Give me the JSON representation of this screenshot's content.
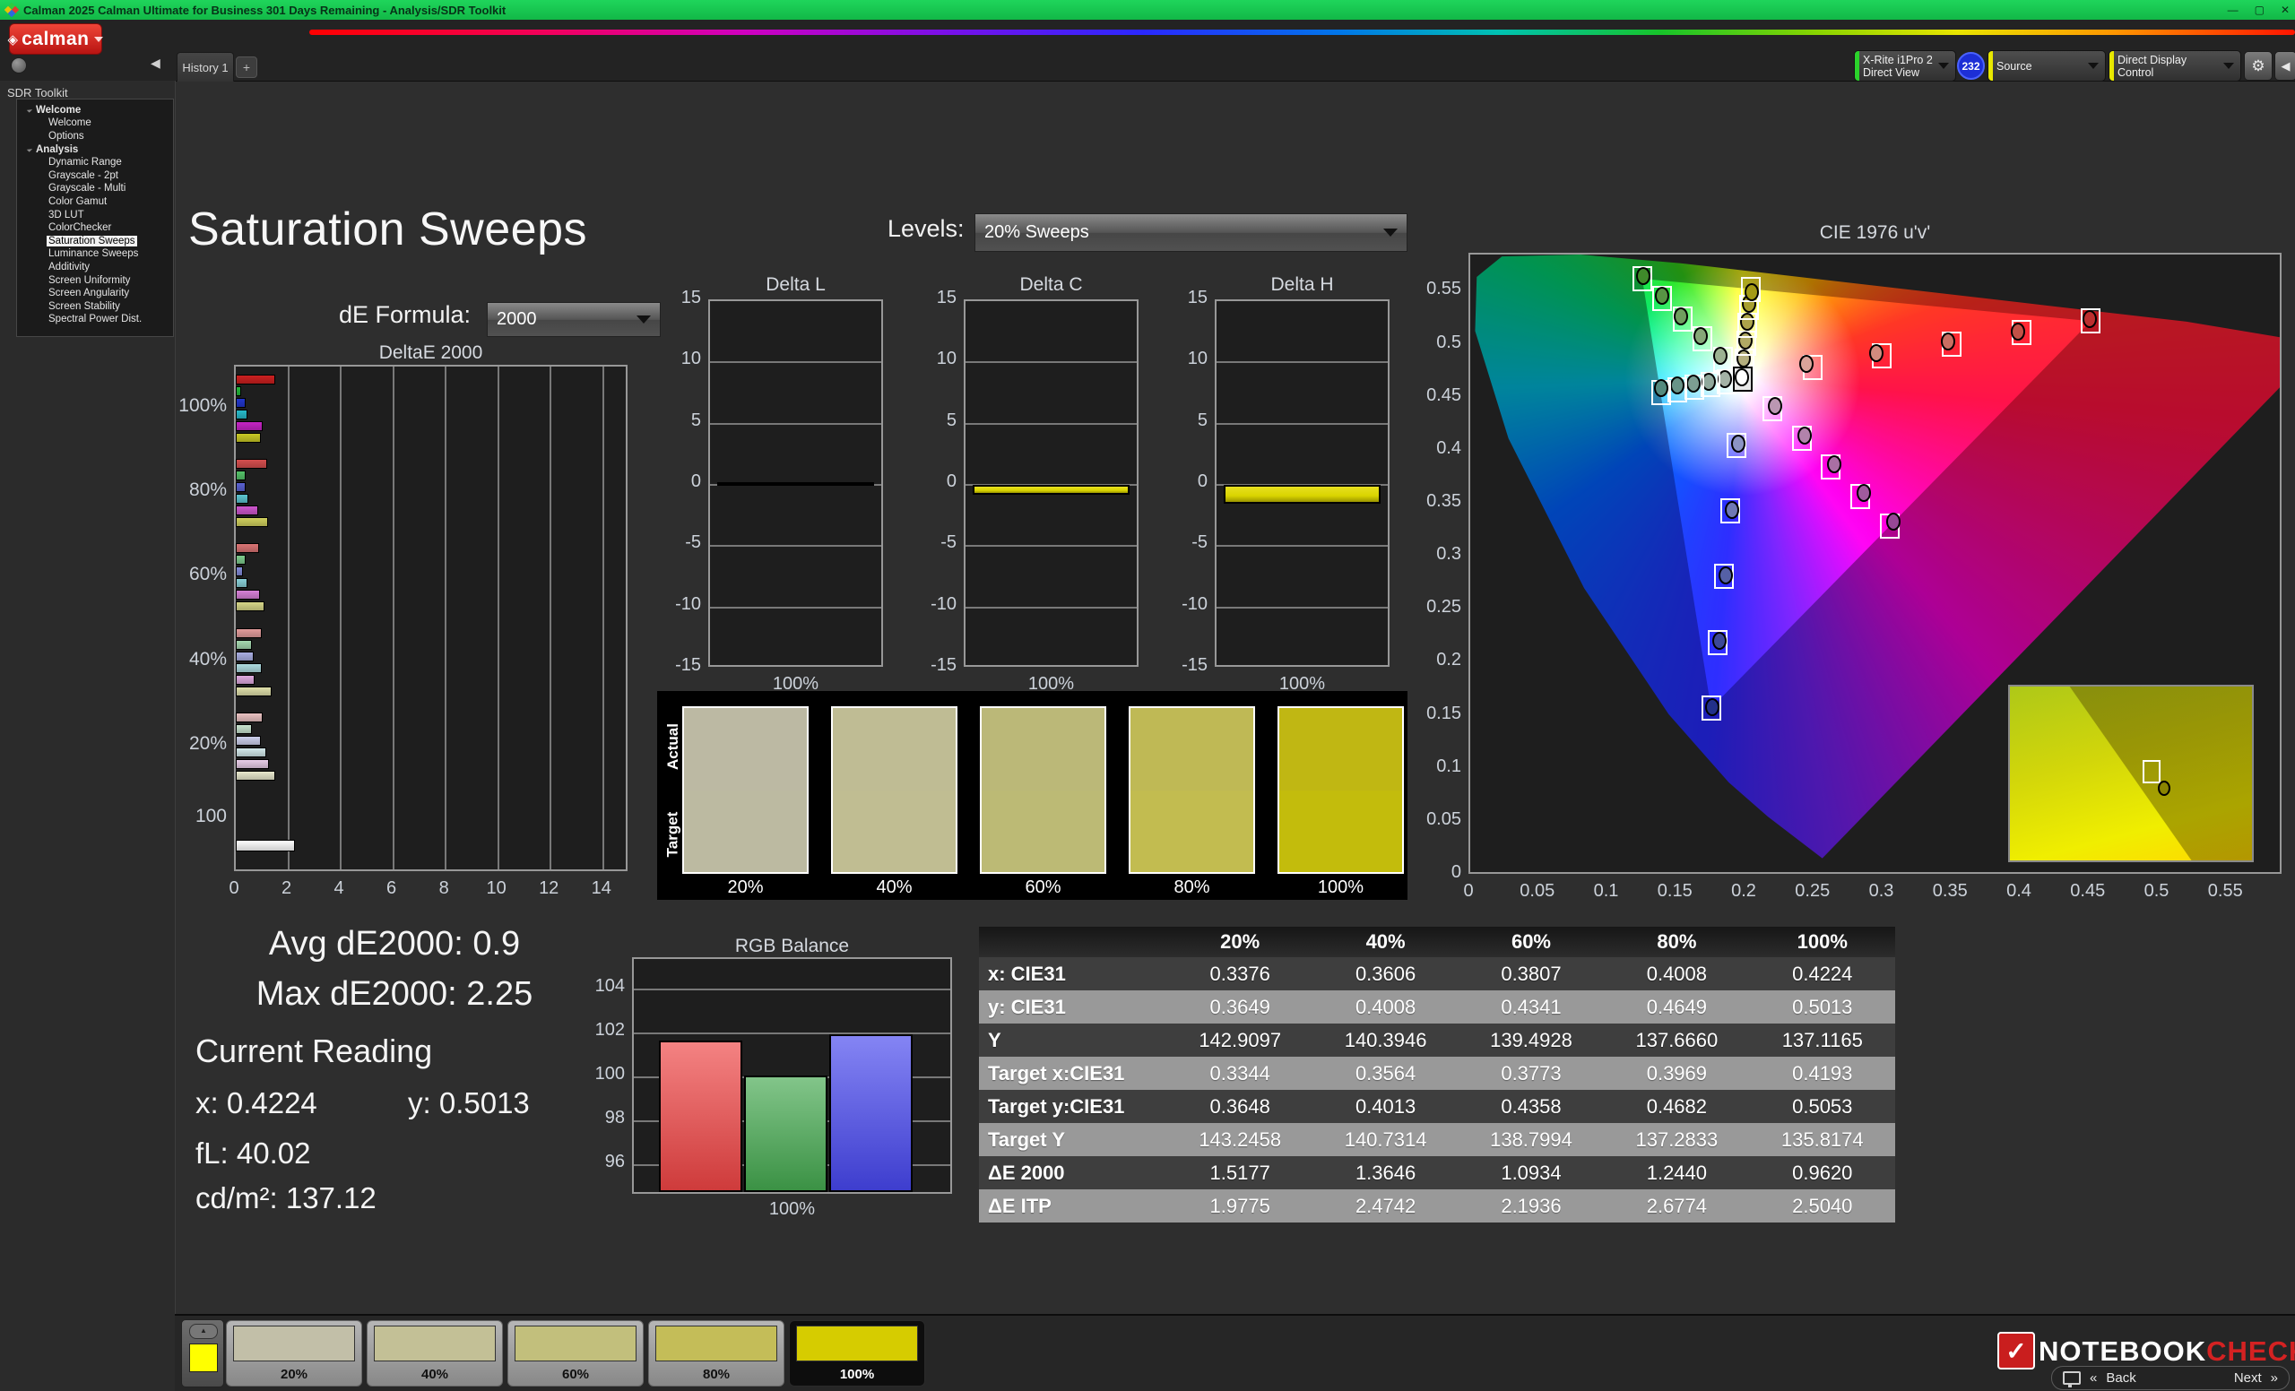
{
  "titlebar": {
    "title": "Calman 2025 Calman Ultimate for Business 301 Days Remaining  - Analysis/SDR Toolkit",
    "minimize_icon": "—",
    "maximize_icon": "▢",
    "close_icon": "✕"
  },
  "header": {
    "logo_text": "calman",
    "logo_diamond": "◈"
  },
  "tabs": {
    "history_tab": "History 1",
    "add_tab": "+"
  },
  "meter_bar": {
    "sensor_line1": "X-Rite i1Pro 2",
    "sensor_line2": "Direct View",
    "sensor_badge": "232",
    "source_label": "Source",
    "display_control_label": "Direct Display Control",
    "gear_icon": "⚙",
    "collapse_icon": "◀",
    "sensor_stripe_color": "#2bd22b",
    "source_stripe_color": "#e8e800",
    "display_stripe_color": "#e8e800"
  },
  "sidebar": {
    "panel_title": "SDR Toolkit",
    "collapse_icon": "◀",
    "groups": [
      {
        "label": "Welcome",
        "items": [
          "Welcome",
          "Options"
        ]
      },
      {
        "label": "Analysis",
        "items": [
          "Dynamic Range",
          "Grayscale - 2pt",
          "Grayscale - Multi",
          "Color Gamut",
          "3D LUT",
          "ColorChecker",
          "Saturation Sweeps",
          "Luminance Sweeps",
          "Additivity",
          "Screen Uniformity",
          "Screen Angularity",
          "Screen Stability",
          "Spectral Power Dist."
        ]
      }
    ],
    "selected_item": "Saturation Sweeps"
  },
  "main": {
    "page_title": "Saturation Sweeps",
    "de_formula_label": "dE Formula:",
    "de_formula_value": "2000",
    "levels_label": "Levels:",
    "levels_value": "20% Sweeps"
  },
  "stats": {
    "avg_label": "Avg dE2000:",
    "avg_value": "0.9",
    "max_label": "Max dE2000:",
    "max_value": "2.25",
    "current_reading_label": "Current Reading",
    "x_label": "x:",
    "x_value": "0.4224",
    "y_label": "y:",
    "y_value": "0.5013",
    "fl_label": "fL:",
    "fl_value": "40.02",
    "cdm2_label": "cd/m²:",
    "cdm2_value": "137.12"
  },
  "swatches": {
    "actual_label": "Actual",
    "target_label": "Target",
    "items": [
      {
        "label": "20%",
        "actual": "#bcb9a3",
        "target": "#bcbaa1"
      },
      {
        "label": "40%",
        "actual": "#bfbc94",
        "target": "#c0bd92"
      },
      {
        "label": "60%",
        "actual": "#bbb878",
        "target": "#bcba75"
      },
      {
        "label": "80%",
        "actual": "#bfb955",
        "target": "#c2bc50"
      },
      {
        "label": "100%",
        "actual": "#c0b713",
        "target": "#c3bc0c"
      }
    ]
  },
  "pattern_bar": {
    "test_color": "#ffff00",
    "up_icon": "▲",
    "items": [
      {
        "label": "20%",
        "color": "#c2bfa8"
      },
      {
        "label": "40%",
        "color": "#c3c096"
      },
      {
        "label": "60%",
        "color": "#c2bf7c"
      },
      {
        "label": "80%",
        "color": "#c4bd58"
      },
      {
        "label": "100%",
        "color": "#d6cc00"
      }
    ],
    "selected": "100%"
  },
  "watermark": {
    "logo_glyph": "✓",
    "word1": "NOTEBOOK",
    "word2": "CHECK",
    "word2_color": "#d42222"
  },
  "nav": {
    "back_icon": "«",
    "back": "Back",
    "next": "Next",
    "next_icon": "»"
  },
  "chart_data": [
    {
      "id": "deltaE2000",
      "type": "bar",
      "orientation": "horizontal",
      "title": "DeltaE 2000",
      "xlim": [
        0,
        15
      ],
      "x_ticks": [
        0,
        2,
        4,
        6,
        8,
        10,
        12,
        14
      ],
      "series_order": [
        "Red",
        "Green",
        "Blue",
        "Cyan",
        "Magenta",
        "Yellow"
      ],
      "groups": [
        {
          "label": "100%",
          "values": [
            1.49,
            0.2,
            0.39,
            0.43,
            1.01,
            0.96
          ],
          "colors": [
            "#cc2020",
            "#22b83a",
            "#2236cc",
            "#27b9c9",
            "#c524c5",
            "#c9c925"
          ]
        },
        {
          "label": "80%",
          "values": [
            1.21,
            0.39,
            0.37,
            0.48,
            0.84,
            1.24
          ],
          "colors": [
            "#d44e4e",
            "#55c269",
            "#5a62d2",
            "#5cc4cf",
            "#cd56cd",
            "#cfcf5d"
          ]
        },
        {
          "label": "60%",
          "values": [
            0.88,
            0.39,
            0.28,
            0.43,
            0.93,
            1.09
          ],
          "colors": [
            "#da7474",
            "#7ecb8d",
            "#828ad8",
            "#88cfd7",
            "#d680d6",
            "#d6d688"
          ]
        },
        {
          "label": "40%",
          "values": [
            0.99,
            0.6,
            0.69,
            0.99,
            0.73,
            1.36
          ],
          "colors": [
            "#e29b9b",
            "#a5d8b0",
            "#a9aee2",
            "#aedbe0",
            "#dfaadf",
            "#dfdfaa"
          ]
        },
        {
          "label": "20%",
          "values": [
            1.01,
            0.62,
            0.96,
            1.16,
            1.27,
            1.52
          ],
          "colors": [
            "#eac2c2",
            "#c8e4cf",
            "#ccd0ec",
            "#d2e8ea",
            "#e8cde8",
            "#e8e8cd"
          ]
        },
        {
          "label": "100",
          "values": [
            2.25
          ],
          "colors": [
            "#ffffff"
          ]
        }
      ]
    },
    {
      "id": "deltaL",
      "type": "bar",
      "title": "Delta L",
      "categories": [
        "100%"
      ],
      "values": [
        0.2
      ],
      "ylim": [
        -15,
        15
      ],
      "y_ticks": [
        15,
        10,
        5,
        0,
        -5,
        -10,
        -15
      ],
      "bar_color": "#d9d400"
    },
    {
      "id": "deltaC",
      "type": "bar",
      "title": "Delta C",
      "categories": [
        "100%"
      ],
      "values": [
        -0.8
      ],
      "ylim": [
        -15,
        15
      ],
      "y_ticks": [
        15,
        10,
        5,
        0,
        -5,
        -10,
        -15
      ],
      "bar_color": "#d9d400"
    },
    {
      "id": "deltaH",
      "type": "bar",
      "title": "Delta H",
      "categories": [
        "100%"
      ],
      "values": [
        -1.5
      ],
      "ylim": [
        -15,
        15
      ],
      "y_ticks": [
        15,
        10,
        5,
        0,
        -5,
        -10,
        -15
      ],
      "bar_color": "#d9d400"
    },
    {
      "id": "rgb_balance",
      "type": "bar",
      "title": "RGB Balance",
      "categories": [
        "Red",
        "Green",
        "Blue"
      ],
      "values": [
        101.5,
        99.9,
        101.8
      ],
      "colors": [
        "#ee4444",
        "#44a84f",
        "#4747ee"
      ],
      "ylim": [
        94.6,
        105.4
      ],
      "y_ticks": [
        104,
        102,
        100,
        98,
        96
      ],
      "xlabel": "100%"
    },
    {
      "id": "cie1976",
      "type": "scatter",
      "title": "CIE 1976 u'v'",
      "xlim": [
        0,
        0.591
      ],
      "ylim": [
        0,
        0.586
      ],
      "x_ticks": [
        "0",
        "0.05",
        "0.1",
        "0.15",
        "0.2",
        "0.25",
        "0.3",
        "0.35",
        "0.4",
        "0.45",
        "0.5",
        "0.55"
      ],
      "y_ticks": [
        "0",
        "0.05",
        "0.1",
        "0.15",
        "0.2",
        "0.25",
        "0.3",
        "0.35",
        "0.4",
        "0.45",
        "0.5",
        "0.55"
      ],
      "gamut_triangle": {
        "red": [
          0.451,
          0.523
        ],
        "green": [
          0.125,
          0.563
        ],
        "blue": [
          0.175,
          0.158
        ]
      },
      "white_point": {
        "target": [
          0.198,
          0.468
        ],
        "measured": [
          0.1975,
          0.47
        ]
      },
      "sweeps": [
        {
          "name": "red",
          "points": [
            {
              "pct": "20%",
              "target": [
                0.2486,
                0.479
              ],
              "measured": [
                0.244,
                0.4825
              ],
              "color": "#dba49a"
            },
            {
              "pct": "40%",
              "target": [
                0.2992,
                0.49
              ],
              "measured": [
                0.295,
                0.493
              ],
              "color": "#d28a7e"
            },
            {
              "pct": "60%",
              "target": [
                0.3498,
                0.501
              ],
              "measured": [
                0.347,
                0.504
              ],
              "color": "#ca6e62"
            },
            {
              "pct": "80%",
              "target": [
                0.4004,
                0.512
              ],
              "measured": [
                0.398,
                0.5135
              ],
              "color": "#c35147"
            },
            {
              "pct": "100%",
              "target": [
                0.451,
                0.523
              ],
              "measured": [
                0.45,
                0.525
              ],
              "color": "#bc2f2f"
            }
          ]
        },
        {
          "name": "green",
          "points": [
            {
              "pct": "20%",
              "target": [
                0.1834,
                0.487
              ],
              "measured": [
                0.1815,
                0.4905
              ],
              "color": "#9cb292"
            },
            {
              "pct": "40%",
              "target": [
                0.1688,
                0.506
              ],
              "measured": [
                0.1672,
                0.5085
              ],
              "color": "#86a878"
            },
            {
              "pct": "60%",
              "target": [
                0.1542,
                0.525
              ],
              "measured": [
                0.153,
                0.5275
              ],
              "color": "#6f9e5e"
            },
            {
              "pct": "80%",
              "target": [
                0.1396,
                0.544
              ],
              "measured": [
                0.1392,
                0.5465
              ],
              "color": "#589444"
            },
            {
              "pct": "100%",
              "target": [
                0.125,
                0.563
              ],
              "measured": [
                0.1258,
                0.5655
              ],
              "color": "#3f8a2a"
            }
          ]
        },
        {
          "name": "blue",
          "points": [
            {
              "pct": "20%",
              "target": [
                0.1934,
                0.406
              ],
              "measured": [
                0.195,
                0.4075
              ],
              "color": "#8c94c4"
            },
            {
              "pct": "40%",
              "target": [
                0.1888,
                0.344
              ],
              "measured": [
                0.19,
                0.345
              ],
              "color": "#7078b4"
            },
            {
              "pct": "60%",
              "target": [
                0.1842,
                0.282
              ],
              "measured": [
                0.1855,
                0.2835
              ],
              "color": "#5560a6"
            },
            {
              "pct": "80%",
              "target": [
                0.1796,
                0.22
              ],
              "measured": [
                0.1808,
                0.2215
              ],
              "color": "#3c4898"
            },
            {
              "pct": "100%",
              "target": [
                0.175,
                0.158
              ],
              "measured": [
                0.176,
                0.159
              ],
              "color": "#22308a"
            }
          ]
        },
        {
          "name": "cyan",
          "points": [
            {
              "pct": "20%",
              "target": [
                0.1862,
                0.4656
              ],
              "measured": [
                0.185,
                0.468
              ],
              "color": "#a4b2a6"
            },
            {
              "pct": "40%",
              "target": [
                0.1744,
                0.4632
              ],
              "measured": [
                0.1735,
                0.466
              ],
              "color": "#90a89c"
            },
            {
              "pct": "60%",
              "target": [
                0.1626,
                0.4608
              ],
              "measured": [
                0.162,
                0.464
              ],
              "color": "#7c9e92"
            },
            {
              "pct": "80%",
              "target": [
                0.1508,
                0.4584
              ],
              "measured": [
                0.1505,
                0.462
              ],
              "color": "#689488"
            },
            {
              "pct": "100%",
              "target": [
                0.139,
                0.456
              ],
              "measured": [
                0.139,
                0.46
              ],
              "color": "#548a7e"
            }
          ]
        },
        {
          "name": "magenta",
          "points": [
            {
              "pct": "20%",
              "target": [
                0.2194,
                0.4404
              ],
              "measured": [
                0.2215,
                0.443
              ],
              "color": "#bb97b2"
            },
            {
              "pct": "40%",
              "target": [
                0.2408,
                0.4128
              ],
              "measured": [
                0.243,
                0.415
              ],
              "color": "#b283ab"
            },
            {
              "pct": "60%",
              "target": [
                0.2622,
                0.3852
              ],
              "measured": [
                0.2645,
                0.388
              ],
              "color": "#a96fa4"
            },
            {
              "pct": "80%",
              "target": [
                0.2836,
                0.3576
              ],
              "measured": [
                0.286,
                0.361
              ],
              "color": "#a05b9d"
            },
            {
              "pct": "100%",
              "target": [
                0.305,
                0.33
              ],
              "measured": [
                0.3075,
                0.334
              ],
              "color": "#974796"
            }
          ]
        },
        {
          "name": "yellow",
          "points": [
            {
              "pct": "20%",
              "target": [
                0.1992,
                0.485
              ],
              "measured": [
                0.1985,
                0.488
              ],
              "color": "#b4ae7e"
            },
            {
              "pct": "40%",
              "target": [
                0.2004,
                0.502
              ],
              "measured": [
                0.2,
                0.505
              ],
              "color": "#b0a964"
            },
            {
              "pct": "60%",
              "target": [
                0.2016,
                0.519
              ],
              "measured": [
                0.2012,
                0.522
              ],
              "color": "#aca44a"
            },
            {
              "pct": "80%",
              "target": [
                0.2028,
                0.536
              ],
              "measured": [
                0.2025,
                0.539
              ],
              "color": "#a89f30"
            },
            {
              "pct": "100%",
              "target": [
                0.204,
                0.553
              ],
              "measured": [
                0.2048,
                0.5505
              ],
              "color": "#a49a16"
            }
          ]
        }
      ]
    },
    {
      "id": "measurements",
      "type": "table",
      "columns": [
        "20%",
        "40%",
        "60%",
        "80%",
        "100%"
      ],
      "rows": [
        {
          "label": "x: CIE31",
          "values": [
            "0.3376",
            "0.3606",
            "0.3807",
            "0.4008",
            "0.4224"
          ]
        },
        {
          "label": "y: CIE31",
          "values": [
            "0.3649",
            "0.4008",
            "0.4341",
            "0.4649",
            "0.5013"
          ]
        },
        {
          "label": "Y",
          "values": [
            "142.9097",
            "140.3946",
            "139.4928",
            "137.6660",
            "137.1165"
          ]
        },
        {
          "label": "Target x:CIE31",
          "values": [
            "0.3344",
            "0.3564",
            "0.3773",
            "0.3969",
            "0.4193"
          ]
        },
        {
          "label": "Target y:CIE31",
          "values": [
            "0.3648",
            "0.4013",
            "0.4358",
            "0.4682",
            "0.5053"
          ]
        },
        {
          "label": "Target Y",
          "values": [
            "143.2458",
            "140.7314",
            "138.7994",
            "137.2833",
            "135.8174"
          ]
        },
        {
          "label": "ΔE 2000",
          "values": [
            "1.5177",
            "1.3646",
            "1.0934",
            "1.2440",
            "0.9620"
          ]
        },
        {
          "label": "ΔE ITP",
          "values": [
            "1.9775",
            "2.4742",
            "2.1936",
            "2.6774",
            "2.5040"
          ]
        }
      ]
    }
  ]
}
